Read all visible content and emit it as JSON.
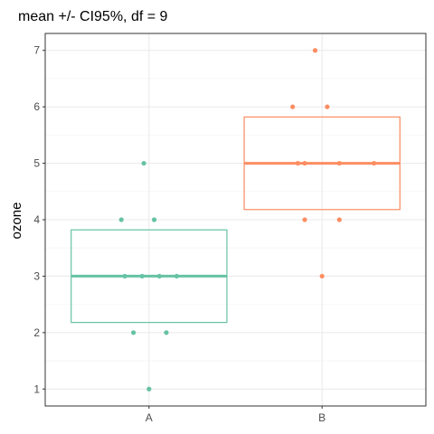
{
  "chart_data": {
    "type": "crossbar-with-jitter",
    "title": "mean +/- CI95%, df = 9",
    "xlabel": "",
    "ylabel": "ozone",
    "ylim": [
      0.7,
      7.3
    ],
    "yticks": [
      1,
      2,
      3,
      4,
      5,
      6,
      7
    ],
    "categories": [
      "A",
      "B"
    ],
    "colors": {
      "A": "#66c2a5",
      "B": "#fc8d62"
    },
    "grid": true,
    "legend": "none",
    "series": [
      {
        "category": "A",
        "mean": 3.0,
        "ci_low": 2.18,
        "ci_high": 3.82,
        "points": [
          {
            "x": 0.86,
            "y": 3
          },
          {
            "x": 1.06,
            "y": 3
          },
          {
            "x": 0.96,
            "y": 3
          },
          {
            "x": 1.16,
            "y": 3
          },
          {
            "x": 0.84,
            "y": 4
          },
          {
            "x": 1.03,
            "y": 4
          },
          {
            "x": 0.97,
            "y": 5
          },
          {
            "x": 0.91,
            "y": 2
          },
          {
            "x": 1.1,
            "y": 2
          },
          {
            "x": 1.0,
            "y": 1
          }
        ]
      },
      {
        "category": "B",
        "mean": 5.0,
        "ci_low": 4.18,
        "ci_high": 5.82,
        "points": [
          {
            "x": 1.86,
            "y": 5
          },
          {
            "x": 1.9,
            "y": 5
          },
          {
            "x": 2.1,
            "y": 5
          },
          {
            "x": 2.3,
            "y": 5
          },
          {
            "x": 1.83,
            "y": 6
          },
          {
            "x": 2.03,
            "y": 6
          },
          {
            "x": 1.96,
            "y": 7
          },
          {
            "x": 1.9,
            "y": 4
          },
          {
            "x": 2.1,
            "y": 4
          },
          {
            "x": 2.0,
            "y": 3
          }
        ]
      }
    ]
  }
}
